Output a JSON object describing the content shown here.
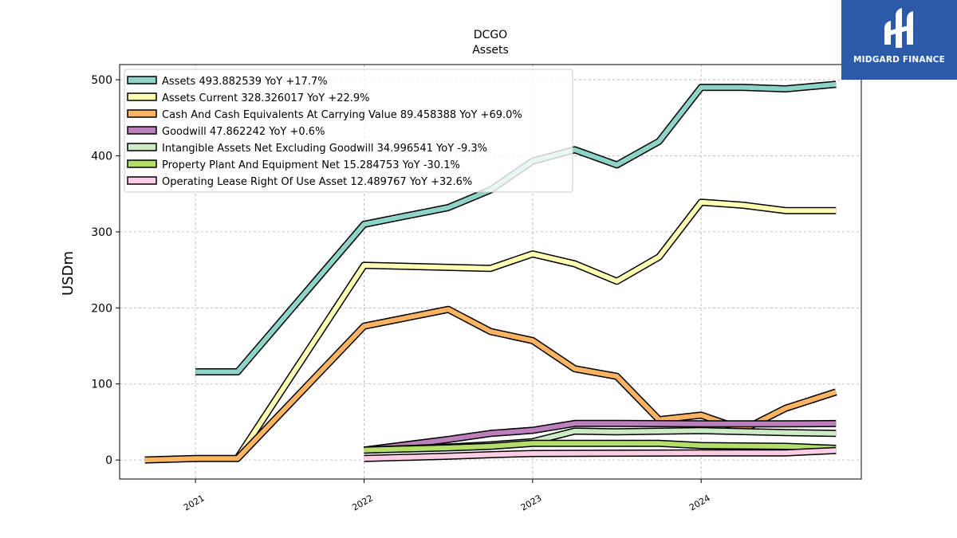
{
  "chart_data": {
    "type": "line",
    "title": "DCGO",
    "subtitle": "Assets",
    "ylabel": "USDm",
    "xlabel": "",
    "ylim": [
      -25,
      520
    ],
    "xlim": [
      2020.55,
      2024.95
    ],
    "yticks": [
      0,
      100,
      200,
      300,
      400,
      500
    ],
    "xticks": [
      {
        "value": 2021,
        "label": "2021"
      },
      {
        "value": 2022,
        "label": "2022"
      },
      {
        "value": 2023,
        "label": "2023"
      },
      {
        "value": 2024,
        "label": "2024"
      }
    ],
    "grid": true,
    "legend_position": "top-left",
    "series": [
      {
        "name": "Assets  493.882539 YoY +17.7%",
        "color": "#8dd3c7",
        "points": [
          [
            2021.0,
            116
          ],
          [
            2021.25,
            116
          ],
          [
            2022.0,
            310
          ],
          [
            2022.5,
            332
          ],
          [
            2022.75,
            355
          ],
          [
            2023.0,
            393
          ],
          [
            2023.25,
            408
          ],
          [
            2023.5,
            388
          ],
          [
            2023.75,
            419
          ],
          [
            2024.0,
            490
          ],
          [
            2024.25,
            490
          ],
          [
            2024.5,
            488
          ],
          [
            2024.8,
            494
          ]
        ]
      },
      {
        "name": "Assets Current  328.326017 YoY +22.9%",
        "color": "#ffffb3",
        "points": [
          [
            2021.25,
            3
          ],
          [
            2022.0,
            256
          ],
          [
            2022.75,
            252
          ],
          [
            2023.0,
            271
          ],
          [
            2023.25,
            258
          ],
          [
            2023.5,
            235
          ],
          [
            2023.75,
            267
          ],
          [
            2024.0,
            339
          ],
          [
            2024.25,
            335
          ],
          [
            2024.5,
            328
          ],
          [
            2024.8,
            328
          ]
        ]
      },
      {
        "name": "Cash And Cash Equivalents At Carrying Value  89.458388 YoY +69.0%",
        "color": "#fdb462",
        "points": [
          [
            2020.7,
            0
          ],
          [
            2021.0,
            2
          ],
          [
            2021.25,
            2
          ],
          [
            2022.0,
            176
          ],
          [
            2022.5,
            198
          ],
          [
            2022.75,
            169
          ],
          [
            2023.0,
            157
          ],
          [
            2023.25,
            120
          ],
          [
            2023.5,
            110
          ],
          [
            2023.75,
            53
          ],
          [
            2024.0,
            59
          ],
          [
            2024.25,
            40
          ],
          [
            2024.5,
            68
          ],
          [
            2024.8,
            89.5
          ]
        ]
      },
      {
        "name": "Goodwill  47.862242 YoY +0.6%",
        "color": "#bc80bd",
        "points": [
          [
            2022.0,
            13
          ],
          [
            2022.5,
            27
          ],
          [
            2022.75,
            35
          ],
          [
            2023.0,
            39
          ],
          [
            2023.25,
            48
          ],
          [
            2023.5,
            48
          ],
          [
            2024.0,
            47.5
          ],
          [
            2024.5,
            47.5
          ],
          [
            2024.8,
            47.9
          ]
        ]
      },
      {
        "name": "Intangible Assets Net Excluding Goodwill  34.996541 YoY -9.3%",
        "color": "#ccebc5",
        "points": [
          [
            2022.0,
            13
          ],
          [
            2022.5,
            17
          ],
          [
            2022.75,
            20
          ],
          [
            2023.0,
            24
          ],
          [
            2023.25,
            38
          ],
          [
            2023.5,
            37
          ],
          [
            2024.0,
            38.6
          ],
          [
            2024.5,
            36
          ],
          [
            2024.8,
            35
          ]
        ]
      },
      {
        "name": "Property Plant And Equipment Net  15.284753 YoY -30.1%",
        "color": "#b3de69",
        "points": [
          [
            2022.0,
            13
          ],
          [
            2022.5,
            16
          ],
          [
            2022.75,
            18
          ],
          [
            2023.0,
            22
          ],
          [
            2023.25,
            22
          ],
          [
            2023.5,
            22
          ],
          [
            2023.75,
            22
          ],
          [
            2024.0,
            19
          ],
          [
            2024.5,
            18
          ],
          [
            2024.8,
            15.3
          ]
        ]
      },
      {
        "name": "Operating Lease Right Of Use Asset  12.489767 YoY +32.6%",
        "color": "#fccde5",
        "points": [
          [
            2022.0,
            2
          ],
          [
            2022.5,
            5
          ],
          [
            2022.75,
            7
          ],
          [
            2023.0,
            8.5
          ],
          [
            2023.5,
            9
          ],
          [
            2024.0,
            9.4
          ],
          [
            2024.5,
            9.4
          ],
          [
            2024.8,
            12.5
          ]
        ]
      }
    ]
  },
  "logo": {
    "text": "MIDGARD FINANCE"
  }
}
